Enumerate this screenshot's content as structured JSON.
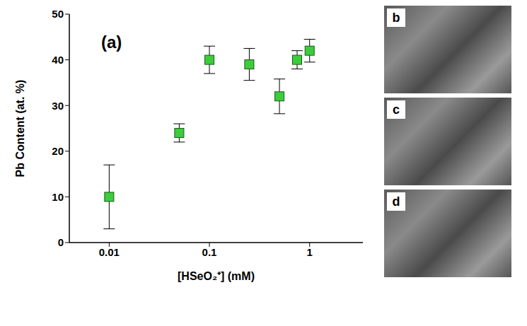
{
  "chart_data": {
    "type": "scatter",
    "annotations": [
      "(a)"
    ],
    "x_label": "[HSeO₂⁺] (mM)",
    "y_label": "Pb Content (at. %)",
    "log": "x",
    "xlim": [
      0.004,
      3.4
    ],
    "xticks": [
      0.01,
      0.1,
      1
    ],
    "ylim": [
      0,
      50
    ],
    "yticks": [
      0,
      10,
      20,
      30,
      40,
      50
    ],
    "grid": false,
    "series": [
      {
        "name": "Pb Content",
        "color": "#3ccc3c",
        "marker": "square",
        "x": [
          0.01,
          0.05,
          0.1,
          0.25,
          0.5,
          0.75,
          1
        ],
        "values": [
          10,
          24,
          40,
          39,
          32,
          40,
          42
        ],
        "errors": [
          7,
          2,
          3,
          3.5,
          3.8,
          2,
          2.5
        ]
      }
    ]
  },
  "side_panels": [
    "b",
    "c",
    "d"
  ]
}
